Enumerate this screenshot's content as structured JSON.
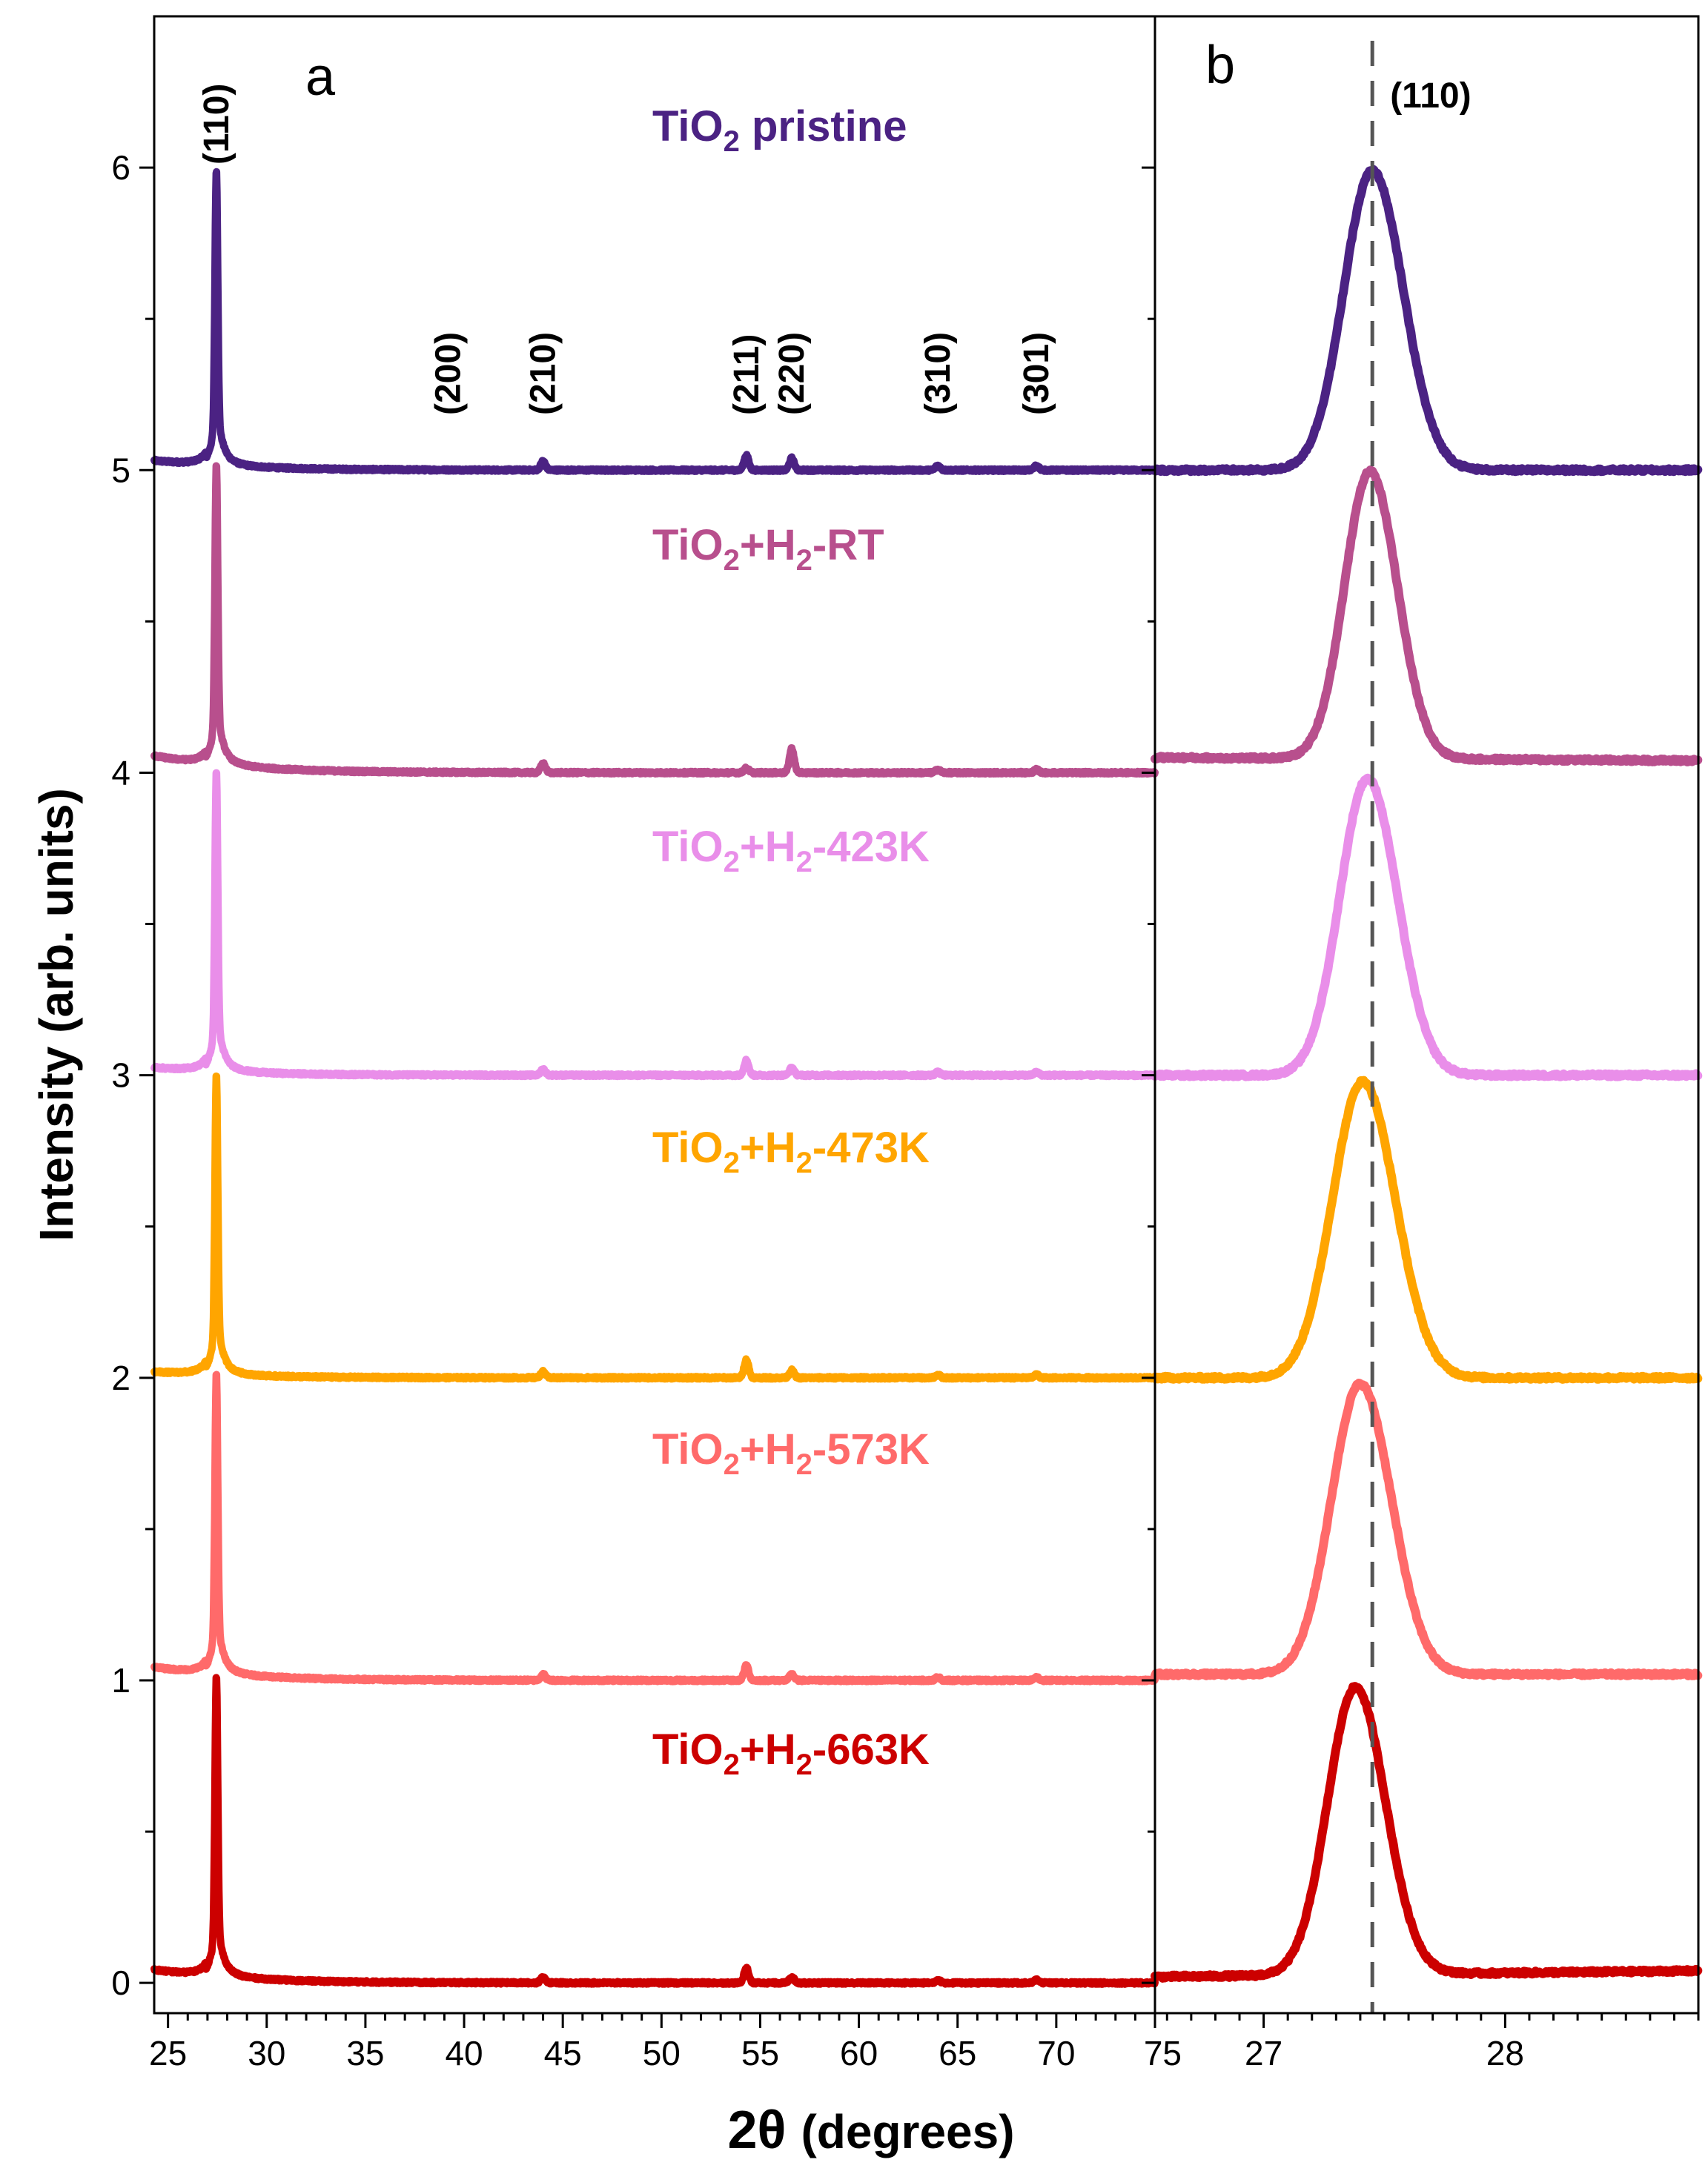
{
  "chart_data": [
    {
      "panel": "a",
      "type": "line",
      "xlabel_prefix": "2θ",
      "xlabel_unit": "(degrees)",
      "ylabel": "Intensity  (arb. units)",
      "xlim": [
        24.3,
        75
      ],
      "ylim": [
        -0.1,
        6.5
      ],
      "x_ticks": [
        25,
        30,
        35,
        40,
        45,
        50,
        55,
        60,
        65,
        70,
        75
      ],
      "y_ticks": [
        0,
        1,
        2,
        3,
        4,
        5,
        6
      ],
      "peak_labels": [
        {
          "text": "(110)",
          "x": 27.45
        },
        {
          "text": "(200)",
          "x": 39.2
        },
        {
          "text": "(210)",
          "x": 44.0
        },
        {
          "text": "(211)",
          "x": 54.3
        },
        {
          "text": "(220)",
          "x": 56.6
        },
        {
          "text": "(310)",
          "x": 64.0
        },
        {
          "text": "(301)",
          "x": 69.0
        }
      ],
      "series": [
        {
          "name": "TiO2 pristine",
          "label_main": "TiO",
          "label_rest": " pristine",
          "label_sub": "2",
          "label_sub2": "",
          "label_tail": "",
          "color": "#4b2283",
          "offset": 5.0,
          "peak_height": 0.98,
          "pre_level": 0.05,
          "minor_peaks": [
            [
              44.0,
              0.03
            ],
            [
              54.3,
              0.05
            ],
            [
              56.6,
              0.04
            ],
            [
              64.0,
              0.015
            ],
            [
              69.0,
              0.015
            ]
          ]
        },
        {
          "name": "TiO2+H2-RT",
          "label_main": "TiO",
          "label_rest": "+H",
          "label_sub": "2",
          "label_sub2": "2",
          "label_tail": "-RT",
          "color": "#b84f8d",
          "offset": 4.0,
          "peak_height": 1.0,
          "pre_level": 0.09,
          "minor_peaks": [
            [
              44.0,
              0.03
            ],
            [
              54.3,
              0.015
            ],
            [
              56.6,
              0.08
            ],
            [
              64.0,
              0.01
            ],
            [
              69.0,
              0.01
            ]
          ]
        },
        {
          "name": "TiO2+H2-423K",
          "label_main": "TiO",
          "label_rest": "+H",
          "label_sub": "2",
          "label_sub2": "2",
          "label_tail": "-423K",
          "color": "#e98ee9",
          "offset": 3.0,
          "peak_height": 1.0,
          "pre_level": 0.04,
          "minor_peaks": [
            [
              44.0,
              0.02
            ],
            [
              54.3,
              0.05
            ],
            [
              56.6,
              0.025
            ],
            [
              64.0,
              0.01
            ],
            [
              69.0,
              0.01
            ]
          ]
        },
        {
          "name": "TiO2+H2-473K",
          "label_main": "TiO",
          "label_rest": "+H",
          "label_sub": "2",
          "label_sub2": "2",
          "label_tail": "-473K",
          "color": "#ffa500",
          "offset": 2.0,
          "peak_height": 1.0,
          "pre_level": 0.03,
          "minor_peaks": [
            [
              44.0,
              0.02
            ],
            [
              54.3,
              0.06
            ],
            [
              56.6,
              0.025
            ],
            [
              64.0,
              0.01
            ],
            [
              69.0,
              0.01
            ]
          ]
        },
        {
          "name": "TiO2+H2-573K",
          "label_main": "TiO",
          "label_rest": "+H",
          "label_sub": "2",
          "label_sub2": "2",
          "label_tail": "-573K",
          "color": "#ff6a6a",
          "offset": 1.0,
          "peak_height": 1.0,
          "pre_level": 0.07,
          "minor_peaks": [
            [
              44.0,
              0.02
            ],
            [
              54.3,
              0.05
            ],
            [
              56.6,
              0.02
            ],
            [
              64.0,
              0.01
            ],
            [
              69.0,
              0.01
            ]
          ]
        },
        {
          "name": "TiO2+H2-663K",
          "label_main": "TiO",
          "label_rest": "+H",
          "label_sub": "2",
          "label_sub2": "2",
          "label_tail": "-663K",
          "color": "#cc0000",
          "offset": 0.0,
          "peak_height": 1.0,
          "pre_level": 0.07,
          "minor_peaks": [
            [
              44.0,
              0.02
            ],
            [
              54.3,
              0.05
            ],
            [
              56.6,
              0.02
            ],
            [
              64.0,
              0.01
            ],
            [
              69.0,
              0.01
            ]
          ]
        }
      ]
    },
    {
      "panel": "b",
      "type": "line",
      "xlim": [
        26.55,
        28.8
      ],
      "ylim": [
        -0.1,
        6.5
      ],
      "x_ticks": [
        27,
        28
      ],
      "reference_line_x": 27.45,
      "reference_label": "(110)",
      "series": [
        {
          "name": "TiO2 pristine",
          "color": "#4b2283",
          "offset": 5.0,
          "center": 27.45,
          "width": 0.118,
          "peak_height": 0.99,
          "base_left": 0.0,
          "base_right": 0.0
        },
        {
          "name": "TiO2+H2-RT",
          "color": "#b84f8d",
          "offset": 4.0,
          "center": 27.44,
          "width": 0.105,
          "peak_height": 0.95,
          "base_left": 0.05,
          "base_right": 0.04
        },
        {
          "name": "TiO2+H2-423K",
          "color": "#e98ee9",
          "offset": 3.0,
          "center": 27.43,
          "width": 0.115,
          "peak_height": 0.98,
          "base_left": 0.0,
          "base_right": 0.0
        },
        {
          "name": "TiO2+H2-473K",
          "color": "#ffa500",
          "offset": 2.0,
          "center": 27.41,
          "width": 0.125,
          "peak_height": 0.98,
          "base_left": 0.0,
          "base_right": 0.0
        },
        {
          "name": "TiO2+H2-573K",
          "color": "#ff6a6a",
          "offset": 1.0,
          "center": 27.4,
          "width": 0.12,
          "peak_height": 0.96,
          "base_left": 0.02,
          "base_right": 0.02
        },
        {
          "name": "TiO2+H2-663K",
          "color": "#cc0000",
          "offset": 0.0,
          "center": 27.38,
          "width": 0.115,
          "peak_height": 0.95,
          "base_left": 0.02,
          "base_right": 0.04
        }
      ]
    }
  ]
}
